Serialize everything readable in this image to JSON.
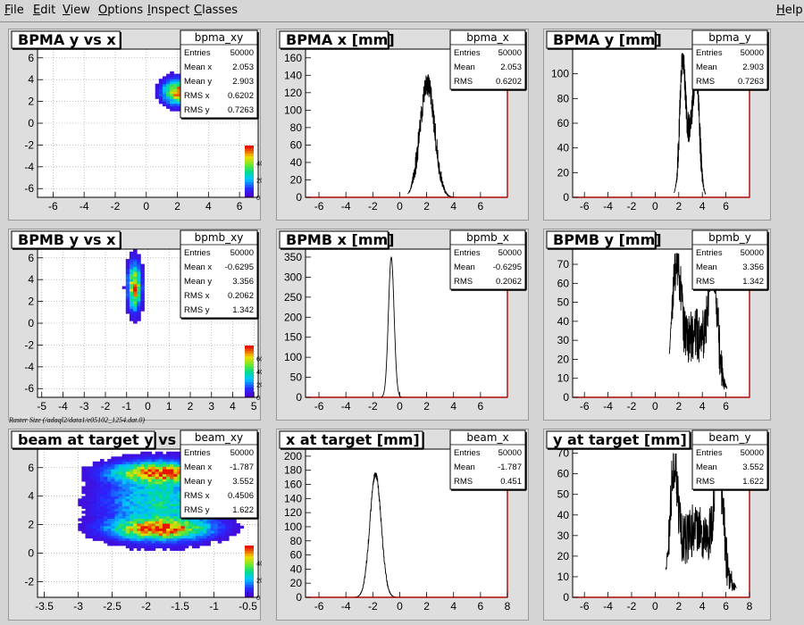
{
  "menubar": {
    "items": [
      {
        "id": "file",
        "label": "File",
        "underline": "F"
      },
      {
        "id": "edit",
        "label": "Edit",
        "underline": "E"
      },
      {
        "id": "view",
        "label": "View",
        "underline": "V"
      },
      {
        "id": "options",
        "label": "Options",
        "underline": "O"
      },
      {
        "id": "inspect",
        "label": "Inspect",
        "underline": "I"
      },
      {
        "id": "classes",
        "label": "Classes",
        "underline": "C"
      }
    ],
    "help": {
      "label": "Help",
      "underline": "H"
    }
  },
  "raster_label": "Raster Size (/adaql2/data1/e05102_1254.dat.0)",
  "colors": {
    "hist_line": "#000000",
    "axis": "#aa0000",
    "frame": "#000000",
    "grid": "#999999"
  },
  "chart_data": [
    {
      "id": "bpma_xy",
      "type": "heatmap",
      "title": "BPMA y vs x",
      "stats_name": "bpma_xy",
      "stats": [
        [
          "Entries",
          "50000"
        ],
        [
          "Mean x",
          "2.053"
        ],
        [
          "Mean y",
          "2.903"
        ],
        [
          "RMS x",
          "0.6202"
        ],
        [
          "RMS y",
          "0.7263"
        ]
      ],
      "xlim": [
        -7,
        7.2
      ],
      "ylim": [
        -6.8,
        6.8
      ],
      "xticks": [
        -6,
        -4,
        -2,
        0,
        2,
        4,
        6
      ],
      "yticks": [
        -6,
        -4,
        -2,
        0,
        2,
        4,
        6
      ],
      "palette_ticks": [
        "0",
        "20",
        "40"
      ],
      "blobs": [
        {
          "cx": 2.05,
          "cy": 2.9,
          "sx": 0.62,
          "sy": 0.73,
          "peak": 0.9
        }
      ]
    },
    {
      "id": "bpma_x",
      "type": "line",
      "title": "BPMA x [mm]",
      "stats_name": "bpma_x",
      "stats": [
        [
          "Entries",
          "50000"
        ],
        [
          "Mean",
          "2.053"
        ],
        [
          "RMS",
          "0.6202"
        ]
      ],
      "xlim": [
        -7,
        8
      ],
      "ylim": [
        0,
        170
      ],
      "xticks": [
        -6,
        -4,
        -2,
        0,
        2,
        4,
        6
      ],
      "yticks": [
        0,
        20,
        40,
        60,
        80,
        100,
        120,
        140,
        160
      ],
      "peaks": [
        {
          "x": 2.05,
          "h": 130,
          "w": 0.55
        }
      ],
      "noise": 28,
      "support": [
        0.6,
        4.3
      ],
      "xclip": [
        0.6,
        4.3
      ]
    },
    {
      "id": "bpma_y",
      "type": "line",
      "title": "BPMA y [mm]",
      "stats_name": "bpma_y",
      "stats": [
        [
          "Entries",
          "50000"
        ],
        [
          "Mean",
          "2.903"
        ],
        [
          "RMS",
          "0.7263"
        ]
      ],
      "xlim": [
        -7,
        8
      ],
      "ylim": [
        0,
        120
      ],
      "xticks": [
        -6,
        -4,
        -2,
        0,
        2,
        4,
        6
      ],
      "yticks": [
        0,
        20,
        40,
        60,
        80,
        100
      ],
      "peaks": [
        {
          "x": 2.3,
          "h": 85,
          "w": 0.22
        },
        {
          "x": 3.5,
          "h": 75,
          "w": 0.25
        },
        {
          "x": 2.9,
          "h": 50,
          "w": 0.55
        }
      ],
      "noise": 25,
      "support": [
        1.6,
        4.3
      ],
      "xclip": [
        1.6,
        4.3
      ]
    },
    {
      "id": "bpmb_xy",
      "type": "heatmap",
      "title": "BPMB y vs x",
      "stats_name": "bpmb_xy",
      "stats": [
        [
          "Entries",
          "50000"
        ],
        [
          "Mean x",
          "-0.6295"
        ],
        [
          "Mean y",
          "3.356"
        ],
        [
          "RMS x",
          "0.2062"
        ],
        [
          "RMS y",
          "1.342"
        ]
      ],
      "xlim": [
        -5.2,
        5.2
      ],
      "ylim": [
        -6.8,
        6.8
      ],
      "xticks": [
        -5,
        -4,
        -3,
        -2,
        -1,
        0,
        1,
        2,
        3,
        4,
        5
      ],
      "yticks": [
        -6,
        -4,
        -2,
        0,
        2,
        4,
        6
      ],
      "palette_ticks": [
        "0",
        "20",
        "40",
        "60"
      ],
      "blobs": [
        {
          "cx": -0.63,
          "cy": 3.36,
          "sx": 0.2,
          "sy": 1.35,
          "peak": 0.9
        }
      ]
    },
    {
      "id": "bpmb_x",
      "type": "line",
      "title": "BPMB x [mm]",
      "stats_name": "bpmb_x",
      "stats": [
        [
          "Entries",
          "50000"
        ],
        [
          "Mean",
          "-0.6295"
        ],
        [
          "RMS",
          "0.2062"
        ]
      ],
      "xlim": [
        -7,
        8
      ],
      "ylim": [
        0,
        370
      ],
      "xticks": [
        -6,
        -4,
        -2,
        0,
        2,
        4,
        6
      ],
      "yticks": [
        0,
        50,
        100,
        150,
        200,
        250,
        300,
        350
      ],
      "peaks": [
        {
          "x": -0.63,
          "h": 350,
          "w": 0.21
        }
      ],
      "noise": 4,
      "support": [
        -1.4,
        0.2
      ],
      "xclip": [
        -1.4,
        0.2
      ]
    },
    {
      "id": "bpmb_y",
      "type": "line",
      "title": "BPMB y [mm]",
      "stats_name": "bpmb_y",
      "stats": [
        [
          "Entries",
          "50000"
        ],
        [
          "Mean",
          "3.356"
        ],
        [
          "RMS",
          "1.342"
        ]
      ],
      "xlim": [
        -7,
        8
      ],
      "ylim": [
        0,
        78
      ],
      "xticks": [
        -6,
        -4,
        -2,
        0,
        2,
        4,
        6
      ],
      "yticks": [
        0,
        10,
        20,
        30,
        40,
        50,
        60,
        70
      ],
      "peaks": [
        {
          "x": 1.8,
          "h": 55,
          "w": 0.35
        },
        {
          "x": 4.9,
          "h": 55,
          "w": 0.35
        },
        {
          "x": 3.35,
          "h": 33,
          "w": 1.4
        }
      ],
      "noise": 28,
      "support": [
        1.2,
        6.1
      ],
      "xclip": [
        1.2,
        6.1
      ]
    },
    {
      "id": "beam_xy",
      "type": "heatmap",
      "title": "beam at target y vs x",
      "stats_name": "beam_xy",
      "stats": [
        [
          "Entries",
          "50000"
        ],
        [
          "Mean x",
          "-1.787"
        ],
        [
          "Mean y",
          "3.552"
        ],
        [
          "RMS x",
          "0.4506"
        ],
        [
          "RMS y",
          "1.622"
        ]
      ],
      "xlim": [
        -3.6,
        -0.35
      ],
      "ylim": [
        -3.1,
        7.3
      ],
      "xticks": [
        -3.5,
        -3,
        -2.5,
        -2,
        -1.5,
        -1,
        -0.5
      ],
      "yticks": [
        -2,
        0,
        2,
        4,
        6
      ],
      "palette_ticks": [
        "0",
        "20",
        "40"
      ],
      "blobs": [
        {
          "cx": -1.8,
          "cy": 1.7,
          "sx": 0.45,
          "sy": 0.45,
          "peak": 0.85
        },
        {
          "cx": -1.8,
          "cy": 5.7,
          "sx": 0.45,
          "sy": 0.45,
          "peak": 0.85
        },
        {
          "cx": -1.8,
          "cy": 3.6,
          "sx": 0.55,
          "sy": 1.6,
          "peak": 0.45
        }
      ]
    },
    {
      "id": "beam_x",
      "type": "line",
      "title": "x at target [mm]",
      "stats_name": "beam_x",
      "stats": [
        [
          "Entries",
          "50000"
        ],
        [
          "Mean",
          "-1.787"
        ],
        [
          "RMS",
          "0.451"
        ]
      ],
      "xlim": [
        -7,
        8
      ],
      "ylim": [
        0,
        210
      ],
      "xticks": [
        -6,
        -4,
        -2,
        0,
        2,
        4,
        6,
        8
      ],
      "yticks": [
        0,
        20,
        40,
        60,
        80,
        100,
        120,
        140,
        160,
        180,
        200
      ],
      "peaks": [
        {
          "x": -1.8,
          "h": 175,
          "w": 0.42
        }
      ],
      "noise": 10,
      "support": [
        -3.5,
        -0.2
      ],
      "xclip": [
        -3.5,
        -0.2
      ]
    },
    {
      "id": "beam_y",
      "type": "line",
      "title": "y at target [mm]",
      "stats_name": "beam_y",
      "stats": [
        [
          "Entries",
          "50000"
        ],
        [
          "Mean",
          "3.552"
        ],
        [
          "RMS",
          "1.622"
        ]
      ],
      "xlim": [
        -7,
        8
      ],
      "ylim": [
        0,
        72
      ],
      "xticks": [
        -6,
        -4,
        -2,
        0,
        2,
        4,
        6,
        8
      ],
      "yticks": [
        0,
        10,
        20,
        30,
        40,
        50,
        60,
        70
      ],
      "peaks": [
        {
          "x": 1.6,
          "h": 48,
          "w": 0.3
        },
        {
          "x": 5.4,
          "h": 48,
          "w": 0.35
        },
        {
          "x": 3.5,
          "h": 33,
          "w": 1.7
        }
      ],
      "noise": 26,
      "support": [
        0.9,
        6.9
      ],
      "xclip": [
        0.9,
        6.9
      ]
    }
  ]
}
